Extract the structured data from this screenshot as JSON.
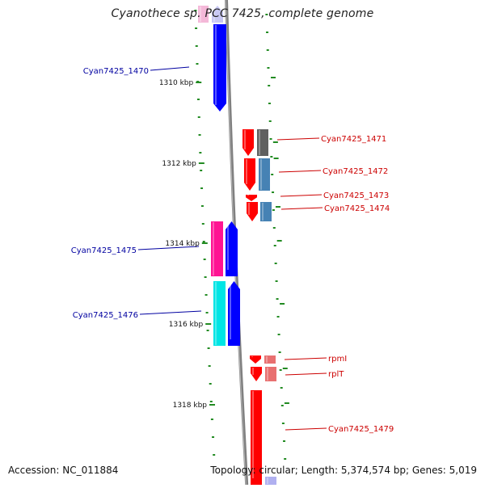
{
  "map": {
    "title": "Cyanothece sp. PCC 7425, complete genome",
    "accession_text": "Accession: NC_011884",
    "topology_text": "Topology: circular; Length: 5,374,574 bp; Genes: 5,019",
    "colors": {
      "backbone": "#808080",
      "tick": "#228B22",
      "forward_label": "#0000A0",
      "reverse_label": "#CC0000"
    },
    "scale_labels": [
      "1310 kbp",
      "1312 kbp",
      "1314 kbp",
      "1316 kbp",
      "1318 kbp"
    ],
    "genes": [
      {
        "id": "g1470",
        "label": "Cyan7425_1470",
        "strand": "forward",
        "color": "#0000FF",
        "arrow": true
      },
      {
        "id": "g1471",
        "label": "Cyan7425_1471",
        "strand": "reverse",
        "color": "#FF0000",
        "arrow": true
      },
      {
        "id": "g1472",
        "label": "Cyan7425_1472",
        "strand": "reverse",
        "color": "#FF0000",
        "arrow": true
      },
      {
        "id": "g1473",
        "label": "Cyan7425_1473",
        "strand": "reverse",
        "color": "#FF0000",
        "arrow": true
      },
      {
        "id": "g1474",
        "label": "Cyan7425_1474",
        "strand": "reverse",
        "color": "#FF0000",
        "arrow": true
      },
      {
        "id": "g1475",
        "label": "Cyan7425_1475",
        "strand": "forward",
        "color": "#0000FF",
        "arrow": true
      },
      {
        "id": "g1476",
        "label": "Cyan7425_1476",
        "strand": "forward",
        "color": "#0000FF",
        "arrow": true
      },
      {
        "id": "rpmI",
        "label": "rpmI",
        "strand": "reverse",
        "color": "#FF0000",
        "arrow": true
      },
      {
        "id": "rplT",
        "label": "rplT",
        "strand": "reverse",
        "color": "#FF0000",
        "arrow": true
      },
      {
        "id": "g1479",
        "label": "Cyan7425_1479",
        "strand": "reverse",
        "color": "#FF0000",
        "arrow": false
      }
    ],
    "cog_blocks": [
      {
        "id": "cog-top-forward",
        "color": "#F4B8D8"
      },
      {
        "id": "cog-top-forward-2",
        "color": "#C8C8F4"
      },
      {
        "id": "cog-1471",
        "color": "#606060"
      },
      {
        "id": "cog-1472",
        "color": "#4682B4"
      },
      {
        "id": "cog-1474",
        "color": "#4682B4"
      },
      {
        "id": "cog-1475",
        "color": "#FF1493"
      },
      {
        "id": "cog-1476",
        "color": "#00E5E5"
      },
      {
        "id": "cog-rpmI",
        "color": "#E87070"
      },
      {
        "id": "cog-rplT",
        "color": "#E87070"
      },
      {
        "id": "cog-bottom",
        "color": "#B0B0F0"
      }
    ]
  }
}
